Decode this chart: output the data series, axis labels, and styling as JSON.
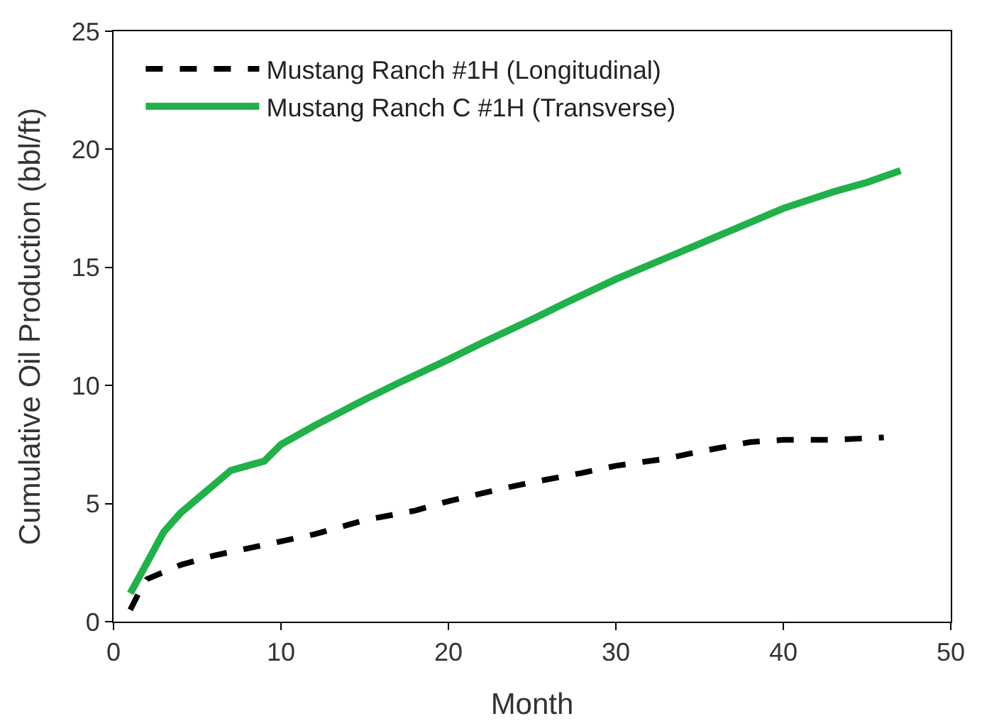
{
  "chart_data": {
    "type": "line",
    "xlabel": "Month",
    "ylabel": "Cumulative Oil Production (bbl/ft)",
    "xlim": [
      0,
      50
    ],
    "xticks": [
      0,
      10,
      20,
      30,
      40,
      50
    ],
    "ylim": [
      0,
      25
    ],
    "yticks": [
      0,
      5,
      10,
      15,
      20,
      25
    ],
    "grid": false,
    "legend": "top left",
    "marker": "none",
    "series": [
      {
        "name": "Mustang Ranch #1H (Longitudinal)",
        "color": "#000000",
        "line_style": "dashed",
        "x": [
          1,
          1.5,
          2,
          4,
          6,
          8,
          10,
          12,
          15,
          18,
          20,
          23,
          25,
          28,
          30,
          33,
          35,
          38,
          40,
          43,
          46
        ],
        "values": [
          0.5,
          1.2,
          1.8,
          2.4,
          2.8,
          3.1,
          3.4,
          3.7,
          4.3,
          4.7,
          5.1,
          5.6,
          5.9,
          6.3,
          6.6,
          6.9,
          7.2,
          7.6,
          7.7,
          7.7,
          7.8
        ]
      },
      {
        "name": "Mustang Ranch C #1H (Transverse)",
        "color": "#22b04b",
        "line_style": "solid",
        "x": [
          1,
          2,
          3,
          4,
          5,
          6,
          7,
          8,
          9,
          10,
          12,
          15,
          17,
          20,
          22,
          25,
          27,
          30,
          33,
          35,
          38,
          40,
          43,
          45,
          47
        ],
        "values": [
          1.2,
          2.5,
          3.8,
          4.6,
          5.2,
          5.8,
          6.4,
          6.6,
          6.8,
          7.5,
          8.3,
          9.4,
          10.1,
          11.1,
          11.8,
          12.8,
          13.5,
          14.5,
          15.4,
          16,
          16.9,
          17.5,
          18.2,
          18.6,
          19.1
        ]
      }
    ]
  }
}
